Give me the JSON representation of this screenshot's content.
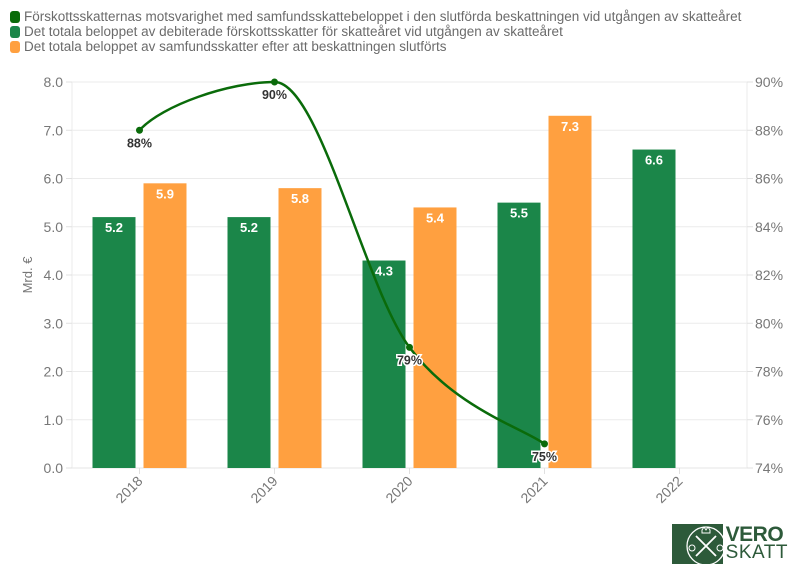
{
  "legend": [
    {
      "label": "Förskottsskatternas motsvarighet med samfundsskattebeloppet i den slutförda beskattningen vid utgången av skatteåret",
      "color": "#0a6b0a"
    },
    {
      "label": "Det totala beloppet av debiterade förskottsskatter för skatteåret vid utgången av skatteåret",
      "color": "#1b8649"
    },
    {
      "label": "Det totala beloppet av samfundsskatter efter att beskattningen slutförts",
      "color": "#ffa040"
    }
  ],
  "logo": {
    "line1": "VERO",
    "line2": "SKATT"
  },
  "chart_data": {
    "type": "bar",
    "categories": [
      "2018",
      "2019",
      "2020",
      "2021",
      "2022"
    ],
    "series": [
      {
        "name": "Det totala beloppet av debiterade förskottsskatter för skatteåret vid utgången av skatteåret",
        "type": "bar",
        "axis": "left",
        "color": "#1b8649",
        "values": [
          5.2,
          5.2,
          4.3,
          5.5,
          6.6
        ],
        "labels": [
          "5.2",
          "5.2",
          "4.3",
          "5.5",
          "6.6"
        ]
      },
      {
        "name": "Det totala beloppet av samfundsskatter efter att beskattningen slutförts",
        "type": "bar",
        "axis": "left",
        "color": "#ffa040",
        "values": [
          5.9,
          5.8,
          5.4,
          7.3,
          null
        ],
        "labels": [
          "5.9",
          "5.8",
          "5.4",
          "7.3",
          ""
        ]
      },
      {
        "name": "Förskottsskatternas motsvarighet med samfundsskattebeloppet i den slutförda beskattningen vid utgången av skatteåret",
        "type": "line",
        "axis": "right",
        "color": "#0a6b0a",
        "values": [
          88,
          90,
          79,
          75,
          null
        ],
        "labels": [
          "88%",
          "90%",
          "79%",
          "75%",
          ""
        ]
      }
    ],
    "ylabel": "Mrd. €",
    "ylim": [
      0,
      8
    ],
    "yticks": [
      "0.0",
      "1.0",
      "2.0",
      "3.0",
      "4.0",
      "5.0",
      "6.0",
      "7.0",
      "8.0"
    ],
    "y2lim": [
      74,
      90
    ],
    "y2ticks": [
      "74%",
      "76%",
      "78%",
      "80%",
      "82%",
      "84%",
      "86%",
      "88%",
      "90%"
    ],
    "grid": true,
    "legend_position": "top-left"
  }
}
